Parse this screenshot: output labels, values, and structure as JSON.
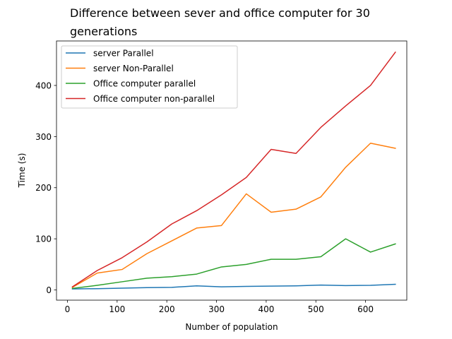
{
  "chart_data": {
    "type": "line",
    "title": "Difference between sever and office computer for 30 generations",
    "xlabel": "Number of population",
    "ylabel": "Time (s)",
    "xlim": [
      -22,
      683
    ],
    "ylim": [
      -20,
      487
    ],
    "xticks": [
      0,
      100,
      200,
      300,
      400,
      500,
      600
    ],
    "yticks": [
      0,
      100,
      200,
      300,
      400
    ],
    "grid": false,
    "legend_position": "top-left",
    "x": [
      10,
      60,
      110,
      160,
      210,
      260,
      310,
      360,
      410,
      460,
      510,
      560,
      610,
      660
    ],
    "series": [
      {
        "name": "server Parallel",
        "color": "#1f77b4",
        "values": [
          2,
          2.5,
          3.5,
          4.5,
          5,
          8,
          6,
          7,
          7.5,
          8,
          9.5,
          8.5,
          9,
          11
        ]
      },
      {
        "name": "server Non-Parallel",
        "color": "#ff7f0e",
        "values": [
          5,
          33,
          40,
          71,
          96,
          121,
          126,
          188,
          152,
          158,
          182,
          240,
          287,
          277
        ]
      },
      {
        "name": "Office computer parallel",
        "color": "#2ca02c",
        "values": [
          3,
          9,
          16,
          23,
          26,
          31,
          45,
          50,
          60,
          60,
          65,
          100,
          74,
          90
        ]
      },
      {
        "name": "Office computer non-parallel",
        "color": "#d62728",
        "values": [
          6,
          38,
          63,
          94,
          129,
          155,
          186,
          220,
          275,
          267,
          318,
          360,
          400,
          465
        ]
      }
    ]
  }
}
